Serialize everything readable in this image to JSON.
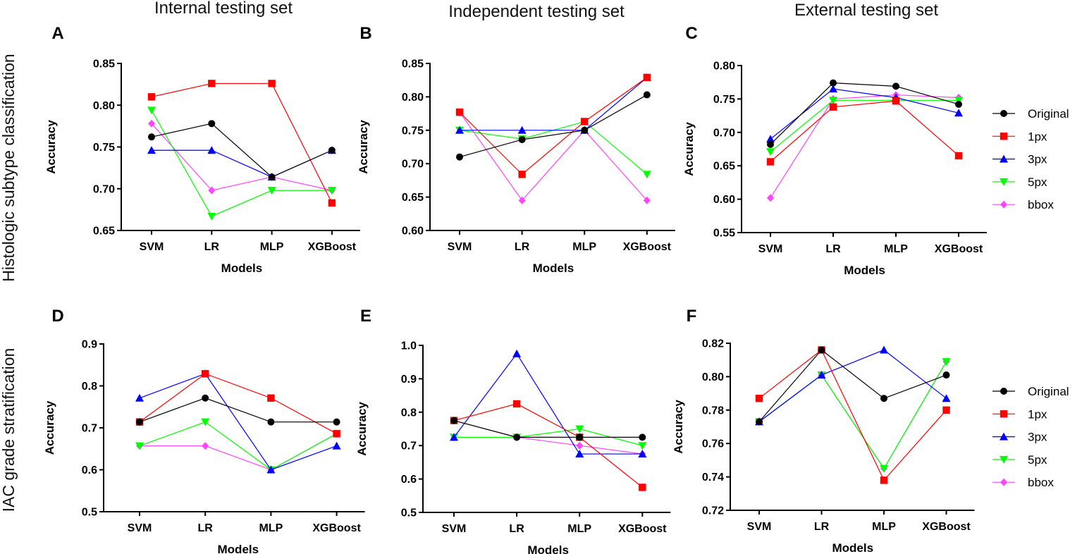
{
  "figure": {
    "column_titles": [
      "Internal testing set",
      "Independent testing set",
      "External testing set"
    ],
    "row_titles": [
      "Histologic subtype classification",
      "IAC grade stratification"
    ]
  },
  "series_styles": [
    {
      "name": "Original",
      "color": "#000000",
      "marker": "circle"
    },
    {
      "name": "1px",
      "color": "#ff0000",
      "marker": "square"
    },
    {
      "name": "3px",
      "color": "#0000ff",
      "marker": "triangle-up"
    },
    {
      "name": "5px",
      "color": "#00ff00",
      "marker": "triangle-down"
    },
    {
      "name": "bbox",
      "color": "#ff44ff",
      "marker": "diamond"
    }
  ],
  "chart_data": [
    {
      "panel": "A",
      "type": "line",
      "xlabel": "Models",
      "ylabel": "Accuracy",
      "categories": [
        "SVM",
        "LR",
        "MLP",
        "XGBoost"
      ],
      "ylim": [
        0.65,
        0.85
      ],
      "yticks": [
        "0.65",
        "0.70",
        "0.75",
        "0.80",
        "0.85"
      ],
      "series": [
        {
          "name": "Original",
          "values": [
            0.762,
            0.778,
            0.714,
            0.746
          ]
        },
        {
          "name": "1px",
          "values": [
            0.81,
            0.826,
            0.826,
            0.683
          ]
        },
        {
          "name": "3px",
          "values": [
            0.746,
            0.746,
            0.714,
            0.746
          ]
        },
        {
          "name": "5px",
          "values": [
            0.794,
            0.667,
            0.698,
            0.698
          ]
        },
        {
          "name": "bbox",
          "values": [
            0.778,
            0.698,
            0.714,
            0.698
          ]
        }
      ]
    },
    {
      "panel": "B",
      "type": "line",
      "xlabel": "Models",
      "ylabel": "Accuracy",
      "categories": [
        "SVM",
        "LR",
        "MLP",
        "XGBoost"
      ],
      "ylim": [
        0.6,
        0.85
      ],
      "yticks": [
        "0.60",
        "0.65",
        "0.70",
        "0.75",
        "0.80",
        "0.85"
      ],
      "series": [
        {
          "name": "Original",
          "values": [
            0.71,
            0.736,
            0.75,
            0.803
          ]
        },
        {
          "name": "1px",
          "values": [
            0.777,
            0.684,
            0.763,
            0.829
          ]
        },
        {
          "name": "3px",
          "values": [
            0.75,
            0.75,
            0.75,
            0.829
          ]
        },
        {
          "name": "5px",
          "values": [
            0.75,
            0.737,
            0.763,
            0.684
          ]
        },
        {
          "name": "bbox",
          "values": [
            0.777,
            0.645,
            0.75,
            0.645
          ]
        }
      ]
    },
    {
      "panel": "C",
      "type": "line",
      "xlabel": "Models",
      "ylabel": "Accuracy",
      "categories": [
        "SVM",
        "LR",
        "MLP",
        "XGBoost"
      ],
      "ylim": [
        0.55,
        0.8
      ],
      "yticks": [
        "0.55",
        "0.60",
        "0.65",
        "0.70",
        "0.75",
        "0.80"
      ],
      "legend": "right",
      "series": [
        {
          "name": "Original",
          "values": [
            0.682,
            0.774,
            0.769,
            0.742
          ]
        },
        {
          "name": "1px",
          "values": [
            0.656,
            0.738,
            0.747,
            0.665
          ]
        },
        {
          "name": "3px",
          "values": [
            0.69,
            0.765,
            0.752,
            0.729
          ]
        },
        {
          "name": "5px",
          "values": [
            0.671,
            0.748,
            0.748,
            0.748
          ]
        },
        {
          "name": "bbox",
          "values": [
            0.602,
            0.75,
            0.756,
            0.752
          ]
        }
      ]
    },
    {
      "panel": "D",
      "type": "line",
      "xlabel": "Models",
      "ylabel": "Accuracy",
      "categories": [
        "SVM",
        "LR",
        "MLP",
        "XGBoost"
      ],
      "ylim": [
        0.5,
        0.9
      ],
      "yticks": [
        "0.5",
        "0.6",
        "0.7",
        "0.8",
        "0.9"
      ],
      "series": [
        {
          "name": "Original",
          "values": [
            0.714,
            0.771,
            0.714,
            0.714
          ]
        },
        {
          "name": "1px",
          "values": [
            0.714,
            0.829,
            0.771,
            0.686
          ]
        },
        {
          "name": "3px",
          "values": [
            0.771,
            0.829,
            0.6,
            0.657
          ]
        },
        {
          "name": "5px",
          "values": [
            0.657,
            0.714,
            0.6,
            0.686
          ]
        },
        {
          "name": "bbox",
          "values": [
            0.657,
            0.657,
            0.6,
            0.686
          ]
        }
      ]
    },
    {
      "panel": "E",
      "type": "line",
      "xlabel": "Models",
      "ylabel": "Accuracy",
      "categories": [
        "SVM",
        "LR",
        "MLP",
        "XGBoost"
      ],
      "ylim": [
        0.5,
        1.0
      ],
      "yticks": [
        "0.5",
        "0.6",
        "0.7",
        "0.8",
        "0.9",
        "1.0"
      ],
      "series": [
        {
          "name": "Original",
          "values": [
            0.775,
            0.725,
            0.725,
            0.725
          ]
        },
        {
          "name": "1px",
          "values": [
            0.775,
            0.825,
            0.725,
            0.575
          ]
        },
        {
          "name": "3px",
          "values": [
            0.725,
            0.975,
            0.675,
            0.675
          ]
        },
        {
          "name": "5px",
          "values": [
            0.725,
            0.725,
            0.75,
            0.7
          ]
        },
        {
          "name": "bbox",
          "values": [
            0.775,
            0.725,
            0.7,
            0.675
          ]
        }
      ]
    },
    {
      "panel": "F",
      "type": "line",
      "xlabel": "Models",
      "ylabel": "Accuracy",
      "categories": [
        "SVM",
        "LR",
        "MLP",
        "XGBoost"
      ],
      "ylim": [
        0.72,
        0.82
      ],
      "yticks": [
        "0.72",
        "0.74",
        "0.76",
        "0.78",
        "0.80",
        "0.82"
      ],
      "legend": "right",
      "series": [
        {
          "name": "Original",
          "values": [
            0.773,
            0.816,
            0.787,
            0.801
          ]
        },
        {
          "name": "1px",
          "values": [
            0.787,
            0.816,
            0.738,
            0.78
          ]
        },
        {
          "name": "3px",
          "values": [
            0.773,
            0.801,
            0.816,
            0.787
          ]
        },
        {
          "name": "5px",
          "values": [
            0.773,
            0.801,
            0.745,
            0.809
          ]
        },
        {
          "name": "bbox",
          "values": [
            0.773,
            0.801,
            0.745,
            0.809
          ]
        }
      ]
    }
  ]
}
